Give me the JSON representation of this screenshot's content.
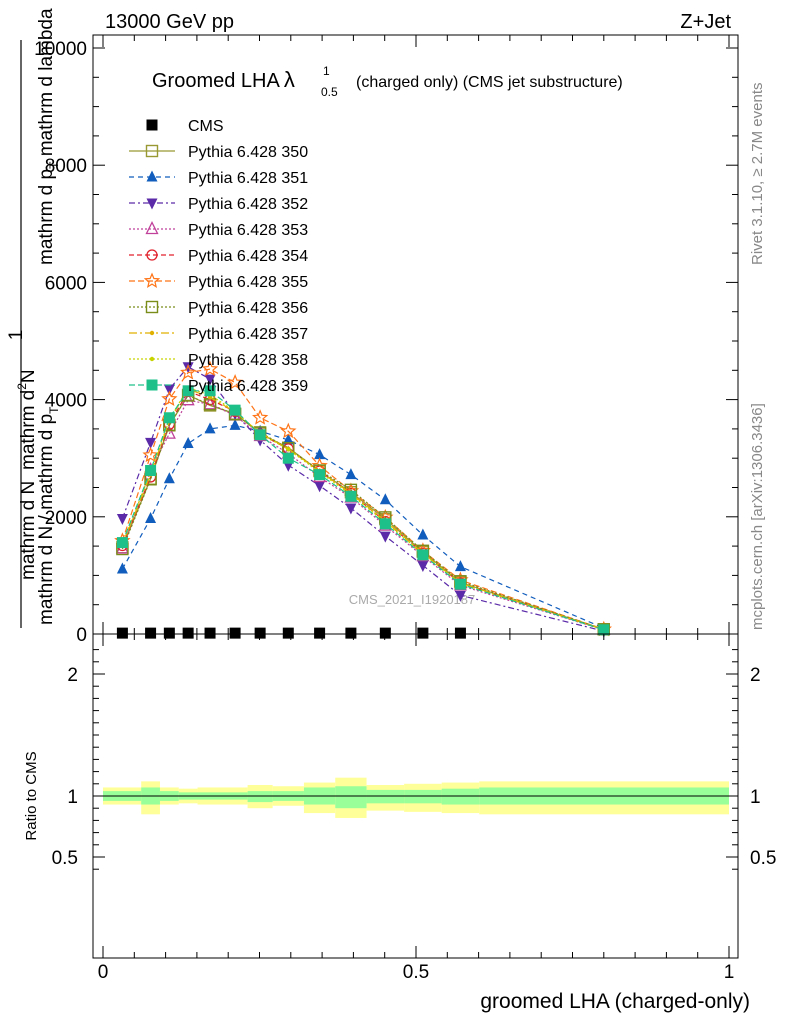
{
  "header": {
    "left": "13000 GeV pp",
    "right": "Z+Jet"
  },
  "side_text": {
    "rivet": "Rivet 3.1.10, ≥ 2.7M events",
    "mcplots": "mcplots.cern.ch [arXiv:1306.3436]"
  },
  "watermark": "CMS_2021_I1920187",
  "chart_data": [
    {
      "type": "line",
      "title_main": "Groomed LHA",
      "title_symbol": "λ",
      "title_sup": "1",
      "title_sub": "0.5",
      "title_rest": "(charged only) (CMS jet substructure)",
      "ylabel": {
        "one": "1",
        "top_num": "mathrm d",
        "top_num_sup": "2",
        "top_num_tail": "N",
        "top_den_a": "mathrm d p",
        "top_den_sub": "T",
        "top_den_b": " mathrm d lambda",
        "bot_num": "mathrm d N",
        "bot_den_a": "mathrm d N / mathrm d p",
        "bot_den_sub": "T"
      },
      "ylim": [
        0,
        10000
      ],
      "yticks": [
        {
          "v": 0,
          "label": "0"
        },
        {
          "v": 2000,
          "label": "2000"
        },
        {
          "v": 4000,
          "label": "4000"
        },
        {
          "v": 6000,
          "label": "6000"
        },
        {
          "v": 8000,
          "label": "8000"
        },
        {
          "v": 10000,
          "label": "10000"
        }
      ],
      "xlim": [
        0,
        1
      ],
      "x": [
        0.031,
        0.076,
        0.106,
        0.136,
        0.171,
        0.211,
        0.251,
        0.296,
        0.346,
        0.396,
        0.451,
        0.511,
        0.571,
        0.8
      ],
      "legend": [
        {
          "name": "CMS",
          "color": "#000000",
          "marker": "square-filled",
          "dash": "none"
        },
        {
          "name": "Pythia 6.428 350",
          "color": "#999933",
          "marker": "square-open",
          "dash": "solid"
        },
        {
          "name": "Pythia 6.428 351",
          "color": "#115dbd",
          "marker": "triangle-up-filled",
          "dash": "5,4"
        },
        {
          "name": "Pythia 6.428 352",
          "color": "#5a2aa8",
          "marker": "triangle-down-filled",
          "dash": "6,3,2,3"
        },
        {
          "name": "Pythia 6.428 353",
          "color": "#c0409a",
          "marker": "triangle-up-open",
          "dash": "2,2"
        },
        {
          "name": "Pythia 6.428 354",
          "color": "#e0202a",
          "marker": "circle-open",
          "dash": "5,3"
        },
        {
          "name": "Pythia 6.428 355",
          "color": "#ff7518",
          "marker": "star-open",
          "dash": "6,3"
        },
        {
          "name": "Pythia 6.428 356",
          "color": "#7a8c1a",
          "marker": "square-open",
          "dash": "2,2"
        },
        {
          "name": "Pythia 6.428 357",
          "color": "#e0b000",
          "marker": "dot-small",
          "dash": "8,3,2,3"
        },
        {
          "name": "Pythia 6.428 358",
          "color": "#c8d400",
          "marker": "dot-small",
          "dash": "2,2"
        },
        {
          "name": "Pythia 6.428 359",
          "color": "#1ec08a",
          "marker": "square-filled",
          "dash": "6,3"
        }
      ],
      "series": [
        {
          "name": "CMS",
          "values": [
            15,
            15,
            15,
            15,
            15,
            15,
            15,
            15,
            15,
            15,
            15,
            15,
            15,
            null
          ]
        },
        {
          "name": "Pythia 6.428 350",
          "values": [
            1480,
            2650,
            3560,
            4080,
            3900,
            3760,
            3420,
            3180,
            2780,
            2420,
            1960,
            1400,
            880,
            80
          ]
        },
        {
          "name": "Pythia 6.428 351",
          "values": [
            1110,
            1970,
            2650,
            3250,
            3500,
            3560,
            3460,
            3310,
            3060,
            2720,
            2290,
            1690,
            1150,
            100
          ]
        },
        {
          "name": "Pythia 6.428 352",
          "values": [
            1970,
            3270,
            4180,
            4560,
            4350,
            3760,
            3310,
            2880,
            2530,
            2150,
            1670,
            1170,
            660,
            50
          ]
        },
        {
          "name": "Pythia 6.428 353",
          "values": [
            1460,
            2800,
            3420,
            3990,
            3920,
            3730,
            3380,
            3080,
            2680,
            2330,
            1850,
            1330,
            830,
            70
          ]
        },
        {
          "name": "Pythia 6.428 354",
          "values": [
            1510,
            2680,
            3580,
            4140,
            4000,
            3800,
            3410,
            3160,
            2780,
            2400,
            1920,
            1380,
            870,
            75
          ]
        },
        {
          "name": "Pythia 6.428 355",
          "values": [
            1590,
            3050,
            4010,
            4460,
            4520,
            4290,
            3690,
            3460,
            2870,
            2440,
            1990,
            1420,
            920,
            80
          ]
        },
        {
          "name": "Pythia 6.428 356",
          "values": [
            1450,
            2640,
            3570,
            4070,
            3920,
            3750,
            3440,
            3170,
            2790,
            2460,
            1990,
            1420,
            900,
            80
          ]
        },
        {
          "name": "Pythia 6.428 357",
          "values": [
            1520,
            2720,
            3640,
            4180,
            4040,
            3790,
            3430,
            3160,
            2780,
            2400,
            1930,
            1380,
            870,
            75
          ]
        },
        {
          "name": "Pythia 6.428 358",
          "values": [
            1540,
            2760,
            3660,
            4200,
            4080,
            3800,
            3420,
            3150,
            2760,
            2380,
            1910,
            1370,
            860,
            75
          ]
        },
        {
          "name": "Pythia 6.428 359",
          "values": [
            1560,
            2790,
            3690,
            4150,
            4150,
            3820,
            3400,
            3000,
            2720,
            2350,
            1880,
            1350,
            850,
            72
          ]
        }
      ]
    },
    {
      "type": "area",
      "ylabel": "Ratio to CMS",
      "xlabel": "groomed LHA (charged-only)",
      "xlim": [
        0,
        1
      ],
      "ylim": [
        0.3,
        2.3
      ],
      "xticks": [
        {
          "v": 0,
          "label": "0"
        },
        {
          "v": 0.5,
          "label": "0.5"
        },
        {
          "v": 1,
          "label": "1"
        }
      ],
      "yticks": [
        {
          "v": 0.5,
          "label": "0.5"
        },
        {
          "v": 1,
          "label": "1"
        },
        {
          "v": 2,
          "label": "2"
        }
      ],
      "bands": [
        {
          "x0": 0.0,
          "x1": 0.061,
          "yellow": [
            0.93,
            1.07
          ],
          "green": [
            0.96,
            1.04
          ]
        },
        {
          "x0": 0.061,
          "x1": 0.091,
          "yellow": [
            0.85,
            1.12
          ],
          "green": [
            0.93,
            1.07
          ]
        },
        {
          "x0": 0.091,
          "x1": 0.121,
          "yellow": [
            0.93,
            1.07
          ],
          "green": [
            0.96,
            1.04
          ]
        },
        {
          "x0": 0.121,
          "x1": 0.151,
          "yellow": [
            0.94,
            1.06
          ],
          "green": [
            0.97,
            1.03
          ]
        },
        {
          "x0": 0.151,
          "x1": 0.231,
          "yellow": [
            0.93,
            1.07
          ],
          "green": [
            0.97,
            1.03
          ]
        },
        {
          "x0": 0.231,
          "x1": 0.271,
          "yellow": [
            0.9,
            1.09
          ],
          "green": [
            0.95,
            1.04
          ]
        },
        {
          "x0": 0.271,
          "x1": 0.321,
          "yellow": [
            0.92,
            1.08
          ],
          "green": [
            0.96,
            1.04
          ]
        },
        {
          "x0": 0.321,
          "x1": 0.371,
          "yellow": [
            0.86,
            1.11
          ],
          "green": [
            0.93,
            1.07
          ]
        },
        {
          "x0": 0.371,
          "x1": 0.421,
          "yellow": [
            0.82,
            1.15
          ],
          "green": [
            0.9,
            1.08
          ]
        },
        {
          "x0": 0.421,
          "x1": 0.481,
          "yellow": [
            0.88,
            1.09
          ],
          "green": [
            0.94,
            1.05
          ]
        },
        {
          "x0": 0.481,
          "x1": 0.541,
          "yellow": [
            0.87,
            1.1
          ],
          "green": [
            0.94,
            1.05
          ]
        },
        {
          "x0": 0.541,
          "x1": 0.601,
          "yellow": [
            0.86,
            1.11
          ],
          "green": [
            0.93,
            1.06
          ]
        },
        {
          "x0": 0.601,
          "x1": 1.0,
          "yellow": [
            0.85,
            1.12
          ],
          "green": [
            0.93,
            1.07
          ]
        }
      ],
      "reference_line": 1
    }
  ]
}
